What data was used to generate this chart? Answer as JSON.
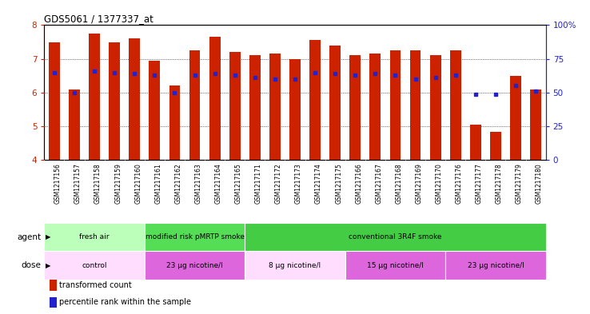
{
  "title": "GDS5061 / 1377337_at",
  "samples": [
    "GSM1217156",
    "GSM1217157",
    "GSM1217158",
    "GSM1217159",
    "GSM1217160",
    "GSM1217161",
    "GSM1217162",
    "GSM1217163",
    "GSM1217164",
    "GSM1217165",
    "GSM1217171",
    "GSM1217172",
    "GSM1217173",
    "GSM1217174",
    "GSM1217175",
    "GSM1217166",
    "GSM1217167",
    "GSM1217168",
    "GSM1217169",
    "GSM1217170",
    "GSM1217176",
    "GSM1217177",
    "GSM1217178",
    "GSM1217179",
    "GSM1217180"
  ],
  "bar_values": [
    7.5,
    6.1,
    7.75,
    7.5,
    7.6,
    6.95,
    6.2,
    7.25,
    7.65,
    7.2,
    7.1,
    7.15,
    7.0,
    7.55,
    7.4,
    7.1,
    7.15,
    7.25,
    7.25,
    7.1,
    7.25,
    5.05,
    4.85,
    6.5,
    6.1
  ],
  "percentile_values": [
    65,
    50,
    66,
    65,
    64,
    63,
    50,
    63,
    64,
    63,
    61,
    60,
    60,
    65,
    64,
    63,
    64,
    63,
    60,
    61,
    63,
    49,
    49,
    55,
    51
  ],
  "bar_color": "#cc2200",
  "dot_color": "#2222cc",
  "ylim_left": [
    4,
    8
  ],
  "ylim_right": [
    0,
    100
  ],
  "yticks_left": [
    4,
    5,
    6,
    7,
    8
  ],
  "yticks_right": [
    0,
    25,
    50,
    75,
    100
  ],
  "agent_groups": [
    {
      "label": "fresh air",
      "start": 0,
      "end": 5,
      "color": "#bbffbb"
    },
    {
      "label": "modified risk pMRTP smoke",
      "start": 5,
      "end": 10,
      "color": "#55dd55"
    },
    {
      "label": "conventional 3R4F smoke",
      "start": 10,
      "end": 25,
      "color": "#44cc44"
    }
  ],
  "dose_groups": [
    {
      "label": "control",
      "start": 0,
      "end": 5,
      "color": "#ffddff"
    },
    {
      "label": "23 μg nicotine/l",
      "start": 5,
      "end": 10,
      "color": "#dd66dd"
    },
    {
      "label": "8 μg nicotine/l",
      "start": 10,
      "end": 15,
      "color": "#ffddff"
    },
    {
      "label": "15 μg nicotine/l",
      "start": 15,
      "end": 20,
      "color": "#dd66dd"
    },
    {
      "label": "23 μg nicotine/l",
      "start": 20,
      "end": 25,
      "color": "#dd66dd"
    }
  ],
  "legend_items": [
    {
      "label": "transformed count",
      "color": "#cc2200"
    },
    {
      "label": "percentile rank within the sample",
      "color": "#2222cc"
    }
  ],
  "xticklabel_bg": "#dddddd",
  "bar_width": 0.55
}
